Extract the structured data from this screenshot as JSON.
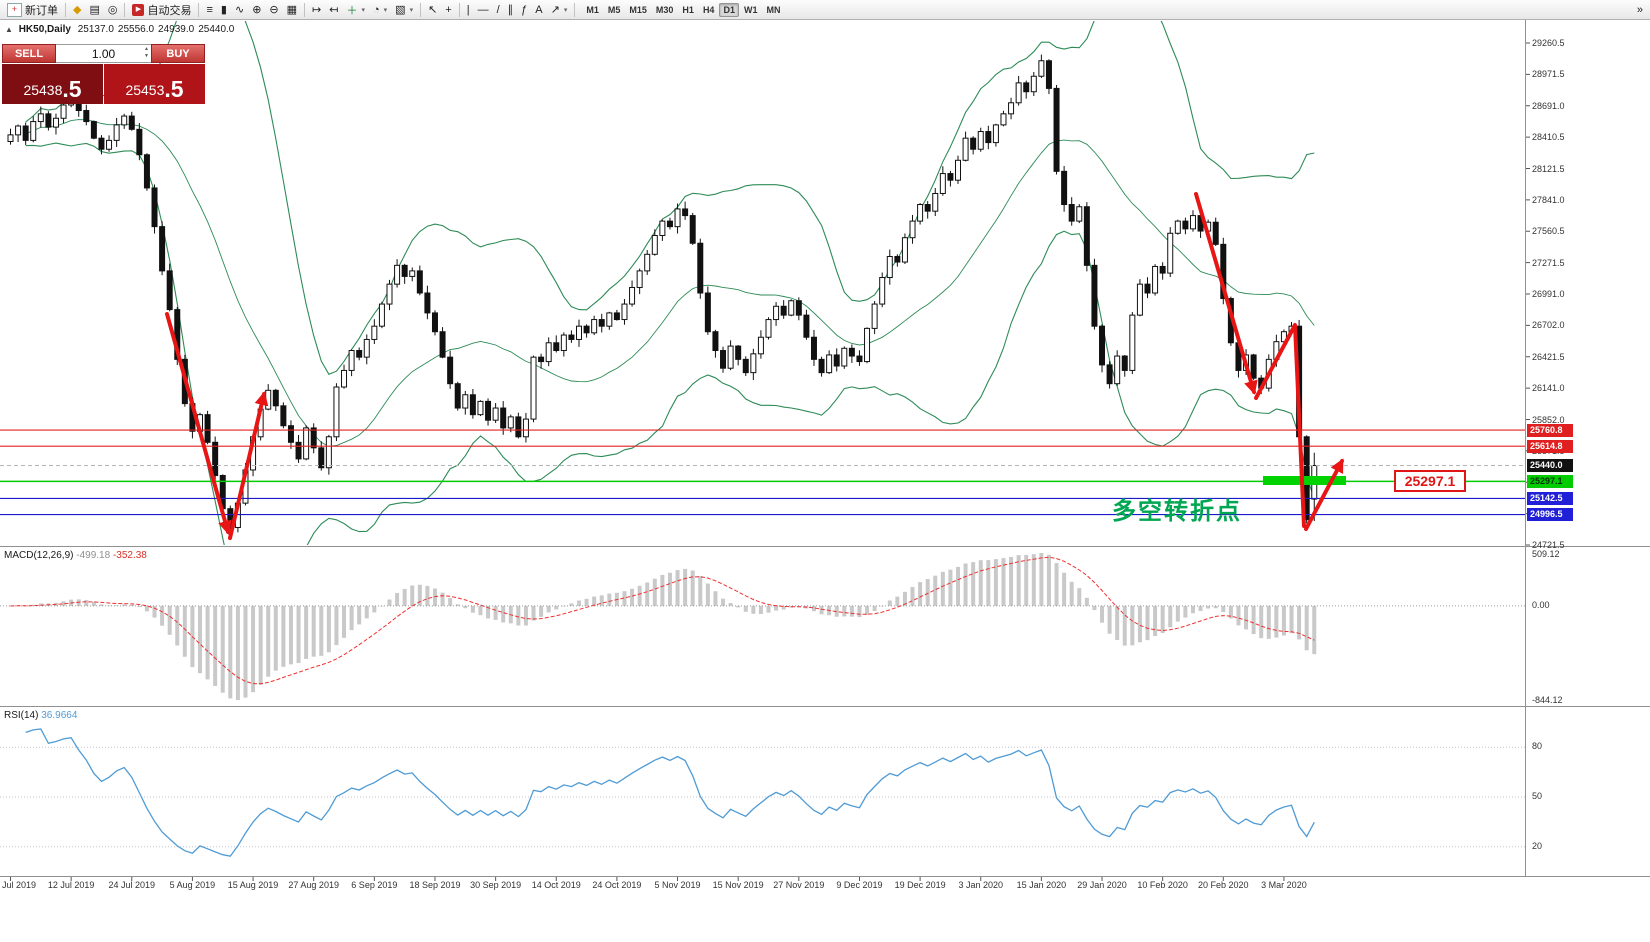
{
  "toolbar": {
    "new_order_label": "新订单",
    "autotrading_label": "自动交易",
    "text_tool_label": "A",
    "timeframes": [
      "M1",
      "M5",
      "M15",
      "M30",
      "H1",
      "H4",
      "D1",
      "W1",
      "MN"
    ],
    "active_timeframe": "D1"
  },
  "chart_header": {
    "symbol": "HK50,Daily",
    "open": "25137.0",
    "high": "25556.0",
    "low": "24939.0",
    "close": "25440.0"
  },
  "one_click": {
    "sell_label": "SELL",
    "buy_label": "BUY",
    "volume": "1.00",
    "sell_price_main": "25438",
    "sell_price_pip": ".5",
    "buy_price_main": "25453",
    "buy_price_pip": ".5"
  },
  "annotations": {
    "turning_point_text": "多空转折点",
    "price_tag": "25297.1"
  },
  "macd_panel": {
    "label": "MACD(12,26,9)",
    "value_main": "-499.18",
    "value_signal": "-352.38",
    "scale_max": "509.12",
    "scale_zero": "0.00",
    "scale_min": "-844.12"
  },
  "rsi_panel": {
    "label": "RSI(14)",
    "value": "36.9664",
    "levels": [
      "80",
      "50",
      "20"
    ]
  },
  "price_scale": {
    "ticks": [
      "29260.5",
      "28971.5",
      "28691.0",
      "28410.5",
      "28121.5",
      "27841.0",
      "27560.5",
      "27271.5",
      "26991.0",
      "26702.0",
      "26421.5",
      "26141.0",
      "25852.0",
      "25571.5",
      "25291.0",
      "25010.5",
      "24721.5"
    ],
    "badges": [
      {
        "label": "25760.8",
        "price": 25760.8,
        "bg": "#e02020",
        "fg": "#ffffff",
        "line": "red"
      },
      {
        "label": "25614.8",
        "price": 25614.8,
        "bg": "#e02020",
        "fg": "#ffffff",
        "line": "red"
      },
      {
        "label": "25440.0",
        "price": 25440.0,
        "bg": "#111111",
        "fg": "#ffffff",
        "line": "current"
      },
      {
        "label": "25297.1",
        "price": 25297.1,
        "bg": "#00cc00",
        "fg": "#06300a",
        "line": "green"
      },
      {
        "label": "25142.5",
        "price": 25142.5,
        "bg": "#2020d8",
        "fg": "#ffffff",
        "line": "blue"
      },
      {
        "label": "24996.5",
        "price": 24996.5,
        "bg": "#2020d8",
        "fg": "#ffffff",
        "line": "blue"
      }
    ]
  },
  "chart_data": {
    "type": "candlestick",
    "symbol": "HK50",
    "timeframe": "Daily",
    "price_range": [
      24721.5,
      29260.5
    ],
    "last_bar_ohlc": [
      25137.0,
      25556.0,
      24939.0,
      25440.0
    ],
    "x_tick_labels": [
      "Jul 2019",
      "12 Jul 2019",
      "24 Jul 2019",
      "5 Aug 2019",
      "15 Aug 2019",
      "27 Aug 2019",
      "6 Sep 2019",
      "18 Sep 2019",
      "30 Sep 2019",
      "14 Oct 2019",
      "24 Oct 2019",
      "5 Nov 2019",
      "15 Nov 2019",
      "27 Nov 2019",
      "9 Dec 2019",
      "19 Dec 2019",
      "3 Jan 2020",
      "15 Jan 2020",
      "29 Jan 2020",
      "10 Feb 2020",
      "20 Feb 2020",
      "3 Mar 2020"
    ],
    "closes": [
      28430,
      28510,
      28380,
      28550,
      28620,
      28500,
      28580,
      28700,
      28760,
      28650,
      28550,
      28400,
      28300,
      28380,
      28520,
      28600,
      28480,
      28250,
      27950,
      27600,
      27200,
      26850,
      26400,
      26000,
      25750,
      25900,
      25650,
      25350,
      25050,
      24880,
      25100,
      25400,
      25700,
      25950,
      26120,
      25980,
      25800,
      25650,
      25500,
      25780,
      25600,
      25420,
      25700,
      26150,
      26300,
      26480,
      26420,
      26580,
      26700,
      26900,
      27080,
      27250,
      27150,
      27200,
      27000,
      26820,
      26650,
      26420,
      26180,
      25960,
      26080,
      25900,
      26020,
      25850,
      25960,
      25780,
      25880,
      25700,
      25860,
      26420,
      26380,
      26550,
      26480,
      26620,
      26580,
      26700,
      26640,
      26760,
      26700,
      26820,
      26760,
      26900,
      27050,
      27200,
      27350,
      27520,
      27650,
      27600,
      27760,
      27700,
      27450,
      27000,
      26650,
      26480,
      26320,
      26520,
      26400,
      26280,
      26450,
      26600,
      26760,
      26880,
      26800,
      26930,
      26800,
      26600,
      26400,
      26280,
      26440,
      26340,
      26500,
      26430,
      26380,
      26680,
      26900,
      27140,
      27330,
      27280,
      27500,
      27650,
      27800,
      27740,
      27900,
      28080,
      28020,
      28200,
      28400,
      28300,
      28460,
      28360,
      28520,
      28620,
      28720,
      28900,
      28820,
      28960,
      29100,
      28850,
      28100,
      27800,
      27650,
      27780,
      27250,
      26700,
      26350,
      26180,
      26430,
      26300,
      26800,
      27080,
      27000,
      27240,
      27180,
      27540,
      27650,
      27580,
      27700,
      27560,
      27640,
      27440,
      26950,
      26550,
      26300,
      26440,
      26230,
      26140,
      26400,
      26560,
      26650,
      26700,
      25700,
      24950,
      25440
    ],
    "indicators": [
      {
        "name": "Bollinger Bands",
        "period": 20,
        "deviation": 2,
        "color": "#2e8b57"
      },
      {
        "name": "MACD",
        "params": [
          12,
          26,
          9
        ],
        "current": [
          -499.18,
          -352.38
        ],
        "axis": [
          -844.12,
          0.0,
          509.12
        ]
      },
      {
        "name": "RSI",
        "period": 14,
        "current": 36.9664,
        "levels": [
          80,
          50,
          20
        ]
      }
    ],
    "horizontal_levels": [
      25760.8,
      25614.8,
      25440.0,
      25297.1,
      25142.5,
      24996.5
    ]
  }
}
